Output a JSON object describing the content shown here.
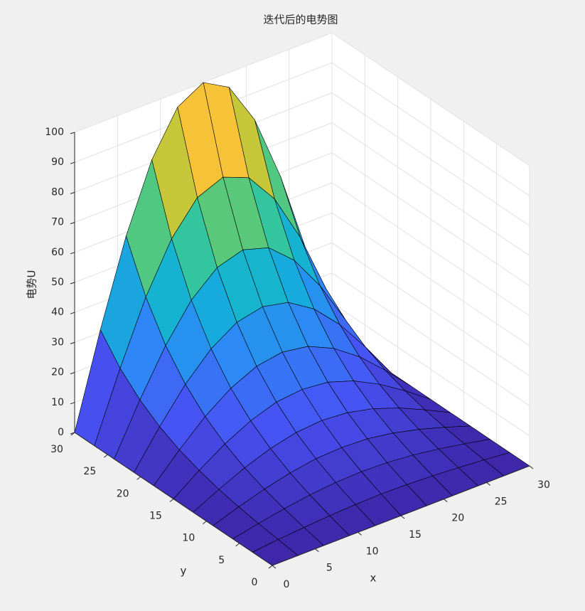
{
  "chart_data": {
    "type": "surface",
    "title": "迭代后的电势图",
    "xlabel": "x",
    "ylabel": "y",
    "zlabel": "电势U",
    "x": [
      0,
      3,
      6,
      9,
      12,
      15,
      18,
      21,
      24,
      27,
      30
    ],
    "y": [
      0,
      3,
      6,
      9,
      12,
      15,
      18,
      21,
      24,
      27,
      30
    ],
    "z": [
      [
        0,
        0,
        0,
        0,
        0,
        0,
        0,
        0,
        0,
        0,
        0
      ],
      [
        0,
        0.9,
        1.6,
        2.2,
        2.6,
        2.8,
        2.6,
        2.2,
        1.6,
        0.9,
        0
      ],
      [
        0,
        1.8,
        3.4,
        4.7,
        5.5,
        5.8,
        5.5,
        4.7,
        3.4,
        1.8,
        0
      ],
      [
        0,
        2.9,
        5.5,
        7.6,
        9,
        9.4,
        9,
        7.6,
        5.5,
        2.9,
        0
      ],
      [
        0,
        4.3,
        8.2,
        11.3,
        13.3,
        14,
        13.3,
        11.3,
        8.2,
        4.3,
        0
      ],
      [
        0,
        6.2,
        11.7,
        16.1,
        19,
        19.9,
        19,
        16.1,
        11.7,
        6.2,
        0
      ],
      [
        0,
        8.6,
        16.4,
        22.5,
        26.5,
        27.9,
        26.5,
        22.5,
        16.4,
        8.6,
        0
      ],
      [
        0,
        11.9,
        22.7,
        31.2,
        36.7,
        38.6,
        36.7,
        31.2,
        22.7,
        11.9,
        0
      ],
      [
        0,
        16.4,
        31.2,
        43,
        50.5,
        53.1,
        50.5,
        43,
        31.2,
        16.4,
        0
      ],
      [
        0,
        22.5,
        42.9,
        59,
        69.4,
        72.9,
        69.4,
        59,
        42.9,
        22.5,
        0
      ],
      [
        0,
        30.9,
        58.8,
        80.9,
        95.1,
        100,
        95.1,
        80.9,
        58.8,
        30.9,
        0
      ]
    ],
    "xlim": [
      0,
      30
    ],
    "ylim": [
      0,
      30
    ],
    "zlim": [
      0,
      100
    ],
    "xticks": [
      0,
      5,
      10,
      15,
      20,
      25,
      30
    ],
    "yticks": [
      0,
      5,
      10,
      15,
      20,
      25,
      30
    ],
    "zticks": [
      0,
      10,
      20,
      30,
      40,
      50,
      60,
      70,
      80,
      90,
      100
    ],
    "grid": true,
    "edge_color": "#000000",
    "colormap": [
      "#3e26a8",
      "#4852f4",
      "#2e87f7",
      "#12b1d6",
      "#37c897",
      "#abc739",
      "#fec338",
      "#f9fb15"
    ]
  }
}
